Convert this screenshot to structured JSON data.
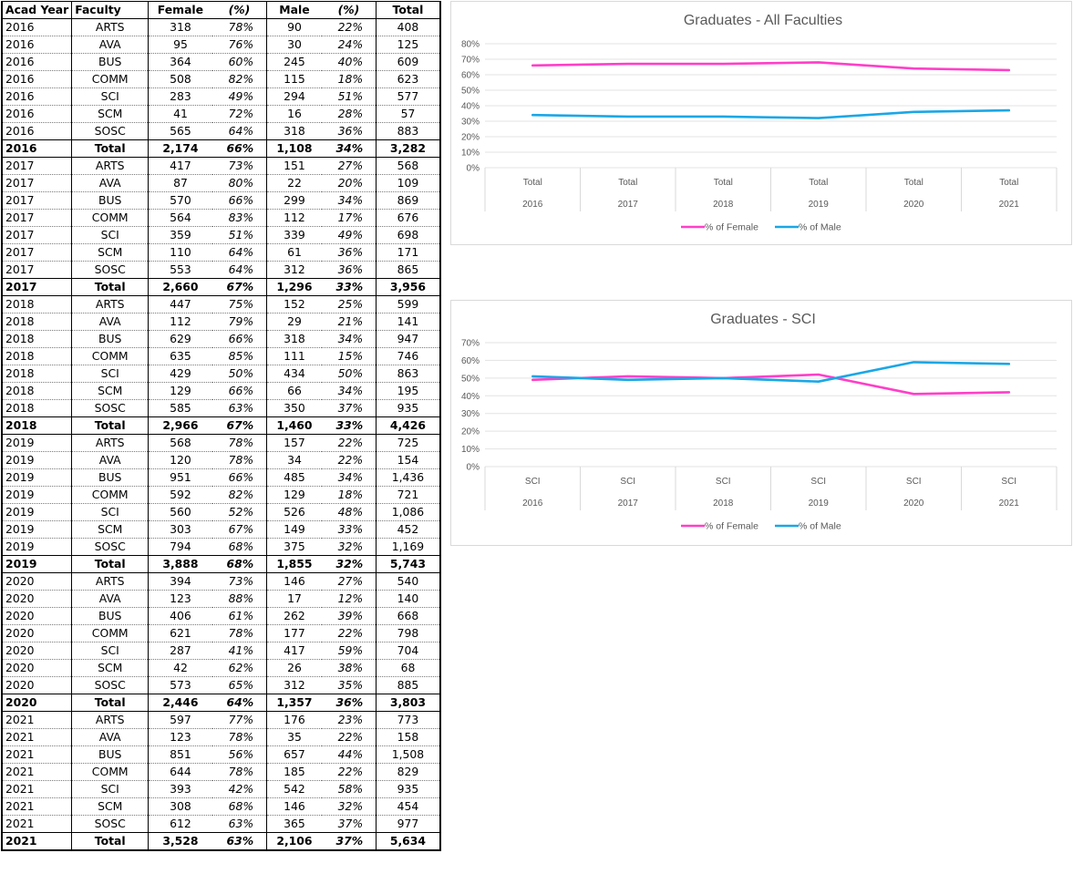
{
  "table": {
    "headers": {
      "year": "Acad Year",
      "faculty": "Faculty",
      "female": "Female",
      "female_pct": "(%)",
      "male": "Male",
      "male_pct": "(%)",
      "total": "Total"
    },
    "rows": [
      [
        "2016",
        "ARTS",
        "318",
        "78%",
        "90",
        "22%",
        "408"
      ],
      [
        "2016",
        "AVA",
        "95",
        "76%",
        "30",
        "24%",
        "125"
      ],
      [
        "2016",
        "BUS",
        "364",
        "60%",
        "245",
        "40%",
        "609"
      ],
      [
        "2016",
        "COMM",
        "508",
        "82%",
        "115",
        "18%",
        "623"
      ],
      [
        "2016",
        "SCI",
        "283",
        "49%",
        "294",
        "51%",
        "577"
      ],
      [
        "2016",
        "SCM",
        "41",
        "72%",
        "16",
        "28%",
        "57"
      ],
      [
        "2016",
        "SOSC",
        "565",
        "64%",
        "318",
        "36%",
        "883"
      ],
      [
        "2016",
        "Total",
        "2,174",
        "66%",
        "1,108",
        "34%",
        "3,282"
      ],
      [
        "2017",
        "ARTS",
        "417",
        "73%",
        "151",
        "27%",
        "568"
      ],
      [
        "2017",
        "AVA",
        "87",
        "80%",
        "22",
        "20%",
        "109"
      ],
      [
        "2017",
        "BUS",
        "570",
        "66%",
        "299",
        "34%",
        "869"
      ],
      [
        "2017",
        "COMM",
        "564",
        "83%",
        "112",
        "17%",
        "676"
      ],
      [
        "2017",
        "SCI",
        "359",
        "51%",
        "339",
        "49%",
        "698"
      ],
      [
        "2017",
        "SCM",
        "110",
        "64%",
        "61",
        "36%",
        "171"
      ],
      [
        "2017",
        "SOSC",
        "553",
        "64%",
        "312",
        "36%",
        "865"
      ],
      [
        "2017",
        "Total",
        "2,660",
        "67%",
        "1,296",
        "33%",
        "3,956"
      ],
      [
        "2018",
        "ARTS",
        "447",
        "75%",
        "152",
        "25%",
        "599"
      ],
      [
        "2018",
        "AVA",
        "112",
        "79%",
        "29",
        "21%",
        "141"
      ],
      [
        "2018",
        "BUS",
        "629",
        "66%",
        "318",
        "34%",
        "947"
      ],
      [
        "2018",
        "COMM",
        "635",
        "85%",
        "111",
        "15%",
        "746"
      ],
      [
        "2018",
        "SCI",
        "429",
        "50%",
        "434",
        "50%",
        "863"
      ],
      [
        "2018",
        "SCM",
        "129",
        "66%",
        "66",
        "34%",
        "195"
      ],
      [
        "2018",
        "SOSC",
        "585",
        "63%",
        "350",
        "37%",
        "935"
      ],
      [
        "2018",
        "Total",
        "2,966",
        "67%",
        "1,460",
        "33%",
        "4,426"
      ],
      [
        "2019",
        "ARTS",
        "568",
        "78%",
        "157",
        "22%",
        "725"
      ],
      [
        "2019",
        "AVA",
        "120",
        "78%",
        "34",
        "22%",
        "154"
      ],
      [
        "2019",
        "BUS",
        "951",
        "66%",
        "485",
        "34%",
        "1,436"
      ],
      [
        "2019",
        "COMM",
        "592",
        "82%",
        "129",
        "18%",
        "721"
      ],
      [
        "2019",
        "SCI",
        "560",
        "52%",
        "526",
        "48%",
        "1,086"
      ],
      [
        "2019",
        "SCM",
        "303",
        "67%",
        "149",
        "33%",
        "452"
      ],
      [
        "2019",
        "SOSC",
        "794",
        "68%",
        "375",
        "32%",
        "1,169"
      ],
      [
        "2019",
        "Total",
        "3,888",
        "68%",
        "1,855",
        "32%",
        "5,743"
      ],
      [
        "2020",
        "ARTS",
        "394",
        "73%",
        "146",
        "27%",
        "540"
      ],
      [
        "2020",
        "AVA",
        "123",
        "88%",
        "17",
        "12%",
        "140"
      ],
      [
        "2020",
        "BUS",
        "406",
        "61%",
        "262",
        "39%",
        "668"
      ],
      [
        "2020",
        "COMM",
        "621",
        "78%",
        "177",
        "22%",
        "798"
      ],
      [
        "2020",
        "SCI",
        "287",
        "41%",
        "417",
        "59%",
        "704"
      ],
      [
        "2020",
        "SCM",
        "42",
        "62%",
        "26",
        "38%",
        "68"
      ],
      [
        "2020",
        "SOSC",
        "573",
        "65%",
        "312",
        "35%",
        "885"
      ],
      [
        "2020",
        "Total",
        "2,446",
        "64%",
        "1,357",
        "36%",
        "3,803"
      ],
      [
        "2021",
        "ARTS",
        "597",
        "77%",
        "176",
        "23%",
        "773"
      ],
      [
        "2021",
        "AVA",
        "123",
        "78%",
        "35",
        "22%",
        "158"
      ],
      [
        "2021",
        "BUS",
        "851",
        "56%",
        "657",
        "44%",
        "1,508"
      ],
      [
        "2021",
        "COMM",
        "644",
        "78%",
        "185",
        "22%",
        "829"
      ],
      [
        "2021",
        "SCI",
        "393",
        "42%",
        "542",
        "58%",
        "935"
      ],
      [
        "2021",
        "SCM",
        "308",
        "68%",
        "146",
        "32%",
        "454"
      ],
      [
        "2021",
        "SOSC",
        "612",
        "63%",
        "365",
        "37%",
        "977"
      ],
      [
        "2021",
        "Total",
        "3,528",
        "63%",
        "2,106",
        "37%",
        "5,634"
      ]
    ]
  },
  "chart_data": [
    {
      "type": "line",
      "title": "Graduates - All Faculties",
      "categories": [
        [
          "Total",
          "2016"
        ],
        [
          "Total",
          "2017"
        ],
        [
          "Total",
          "2018"
        ],
        [
          "Total",
          "2019"
        ],
        [
          "Total",
          "2020"
        ],
        [
          "Total",
          "2021"
        ]
      ],
      "series": [
        {
          "name": "% of Female",
          "color": "#ff3fc8",
          "values": [
            66,
            67,
            67,
            68,
            64,
            63
          ]
        },
        {
          "name": "% of Male",
          "color": "#1aa7e6",
          "values": [
            34,
            33,
            33,
            32,
            36,
            37
          ]
        }
      ],
      "ylim": [
        0,
        80
      ],
      "yticks": [
        "0%",
        "10%",
        "20%",
        "30%",
        "40%",
        "50%",
        "60%",
        "70%",
        "80%"
      ],
      "grid": true,
      "legend": "bottom"
    },
    {
      "type": "line",
      "title": "Graduates - SCI",
      "categories": [
        [
          "SCI",
          "2016"
        ],
        [
          "SCI",
          "2017"
        ],
        [
          "SCI",
          "2018"
        ],
        [
          "SCI",
          "2019"
        ],
        [
          "SCI",
          "2020"
        ],
        [
          "SCI",
          "2021"
        ]
      ],
      "series": [
        {
          "name": "% of Female",
          "color": "#ff3fc8",
          "values": [
            49,
            51,
            50,
            52,
            41,
            42
          ]
        },
        {
          "name": "% of Male",
          "color": "#1aa7e6",
          "values": [
            51,
            49,
            50,
            48,
            59,
            58
          ]
        }
      ],
      "ylim": [
        0,
        70
      ],
      "yticks": [
        "0%",
        "10%",
        "20%",
        "30%",
        "40%",
        "50%",
        "60%",
        "70%"
      ],
      "grid": true,
      "legend": "bottom"
    }
  ]
}
